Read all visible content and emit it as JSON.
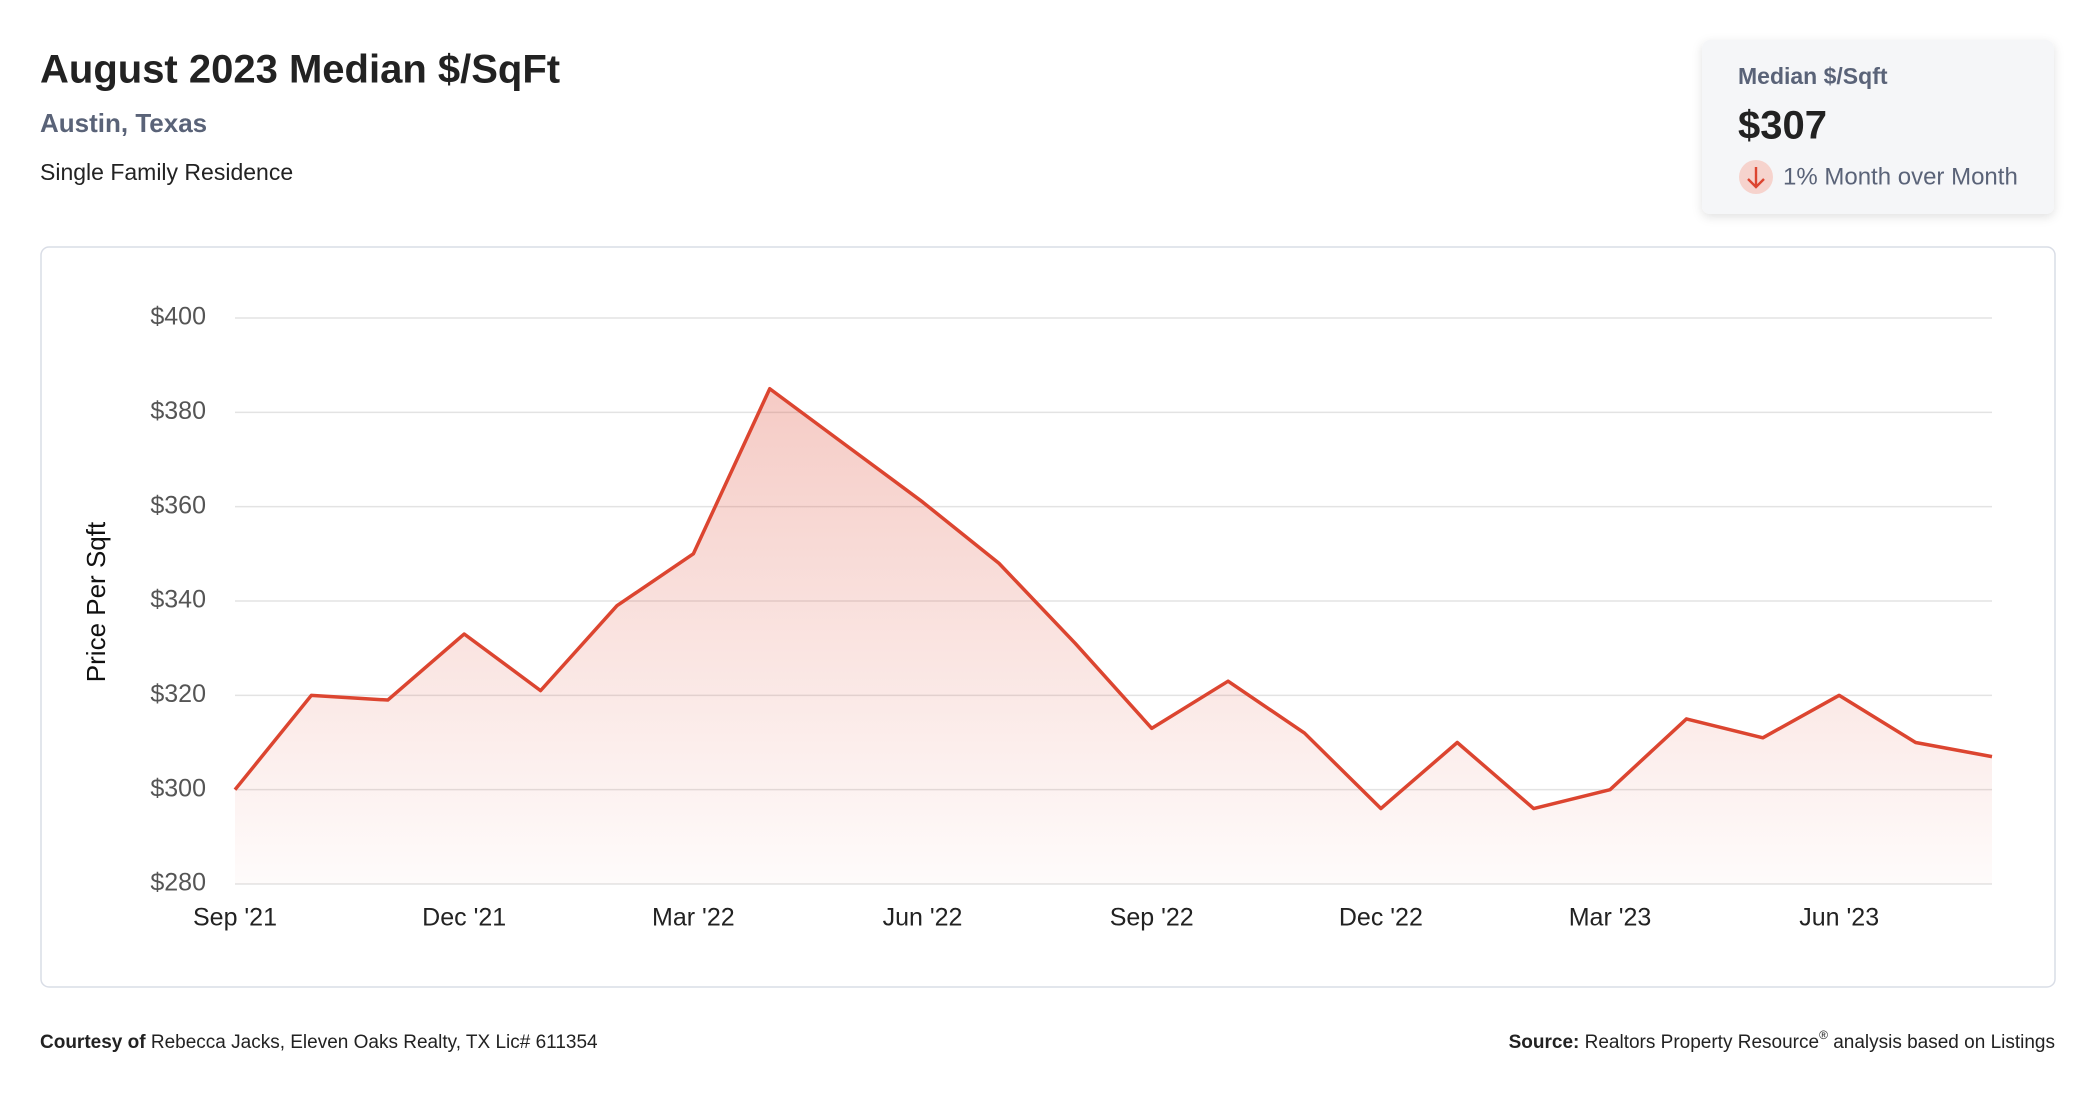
{
  "header": {
    "title": "August 2023 Median $/SqFt",
    "location": "Austin, Texas",
    "property_type": "Single Family Residence"
  },
  "kpi": {
    "label": "Median $/Sqft",
    "value": "$307",
    "change": "1% Month over Month"
  },
  "chart_data": {
    "type": "line",
    "ylabel": "Price Per Sqft",
    "categories": [
      "Sep '21",
      null,
      null,
      "Dec '21",
      null,
      null,
      "Mar '22",
      null,
      null,
      "Jun '22",
      null,
      null,
      "Sep '22",
      null,
      null,
      "Dec '22",
      null,
      null,
      "Mar '23",
      null,
      null,
      "Jun '23",
      null,
      null
    ],
    "values": [
      300,
      320,
      319,
      333,
      321,
      339,
      350,
      385,
      373,
      361,
      348,
      331,
      313,
      323,
      312,
      296,
      310,
      296,
      300,
      315,
      311,
      320,
      310,
      307
    ],
    "color": "#dc4530",
    "area": true,
    "ylim": [
      280,
      400
    ],
    "yticks": [
      {
        "value": 280,
        "label": "$280"
      },
      {
        "value": 300,
        "label": "$300"
      },
      {
        "value": 320,
        "label": "$320"
      },
      {
        "value": 340,
        "label": "$340"
      },
      {
        "value": 360,
        "label": "$360"
      },
      {
        "value": 380,
        "label": "$380"
      },
      {
        "value": 400,
        "label": "$400"
      }
    ],
    "grid": true
  },
  "footer": {
    "courtesy_label": "Courtesy of",
    "courtesy": "Rebecca Jacks, Eleven Oaks Realty, TX Lic# 611354",
    "source_label": "Source:",
    "source": "Realtors Property Resource",
    "source_mark": "®",
    "source_rest": "analysis based on Listings"
  }
}
